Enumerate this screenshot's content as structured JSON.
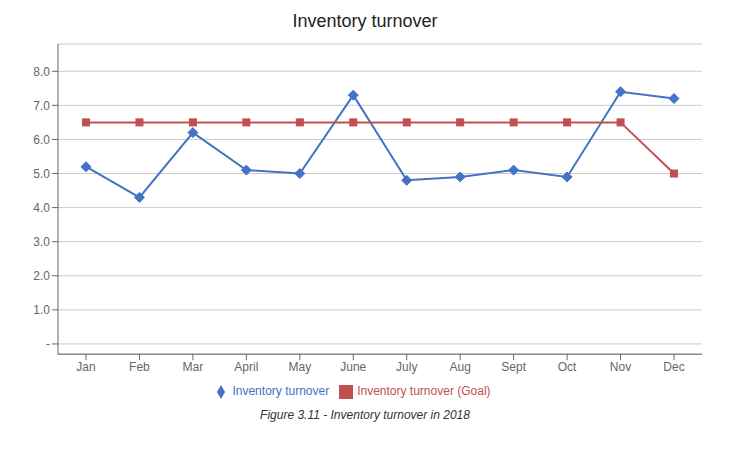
{
  "chart_data": {
    "type": "line",
    "title": "Inventory turnover",
    "caption": "Figure 3.11 - Inventory turnover in 2018",
    "categories": [
      "Jan",
      "Feb",
      "Mar",
      "April",
      "May",
      "June",
      "July",
      "Aug",
      "Sept",
      "Oct",
      "Nov",
      "Dec"
    ],
    "series": [
      {
        "name": "Inventory turnover",
        "color": "#4472C4",
        "marker": "diamond",
        "values": [
          5.2,
          4.3,
          6.2,
          5.1,
          5.0,
          7.3,
          4.8,
          4.9,
          5.1,
          4.9,
          7.4,
          7.2
        ]
      },
      {
        "name": "Inventory turnover (Goal)",
        "color": "#C0504D",
        "marker": "square",
        "values": [
          6.5,
          6.5,
          6.5,
          6.5,
          6.5,
          6.5,
          6.5,
          6.5,
          6.5,
          6.5,
          6.5,
          5.0
        ]
      }
    ],
    "ylim": [
      -0.3,
      8.8
    ],
    "yticks": [
      {
        "value": 0,
        "label": "-"
      },
      {
        "value": 1.0,
        "label": "1.0"
      },
      {
        "value": 2.0,
        "label": "2.0"
      },
      {
        "value": 3.0,
        "label": "3.0"
      },
      {
        "value": 4.0,
        "label": "4.0"
      },
      {
        "value": 5.0,
        "label": "5.0"
      },
      {
        "value": 6.0,
        "label": "6.0"
      },
      {
        "value": 7.0,
        "label": "7.0"
      },
      {
        "value": 8.0,
        "label": "8.0"
      }
    ],
    "grid": true,
    "legend": "bottom"
  }
}
